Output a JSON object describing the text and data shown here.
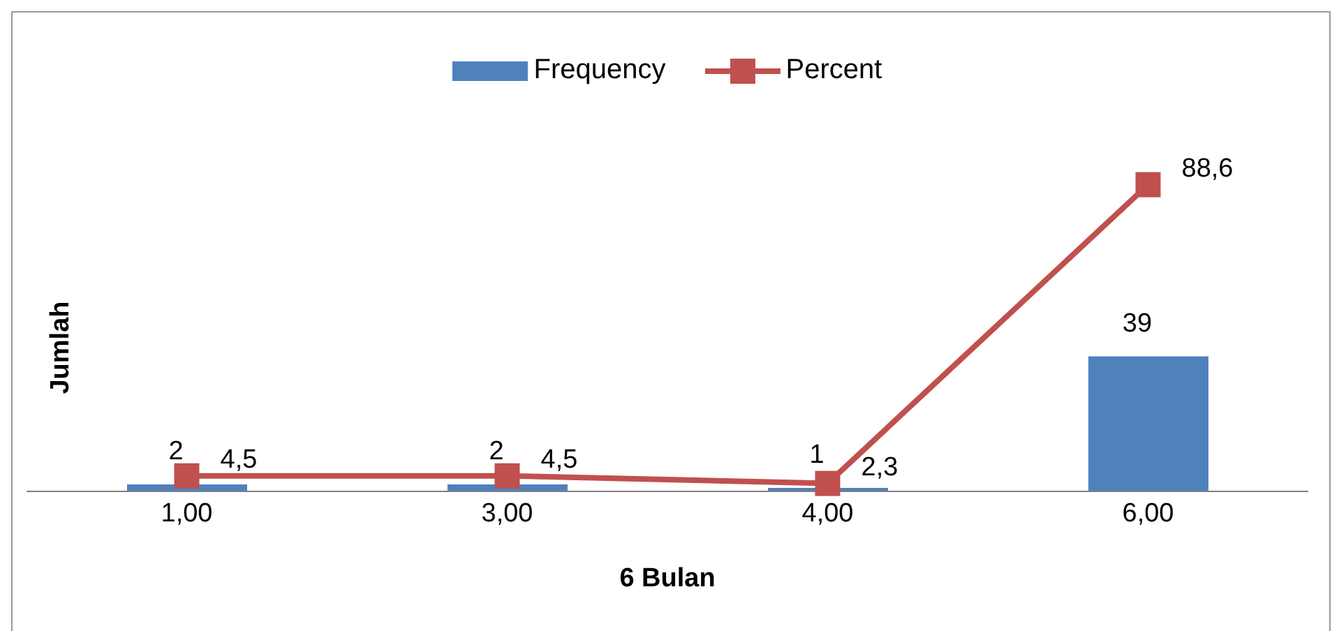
{
  "chart_data": {
    "type": "bar",
    "xlabel": "6 Bulan",
    "ylabel": "Jumlah",
    "categories": [
      "1,00",
      "3,00",
      "4,00",
      "6,00"
    ],
    "legend": "top",
    "marker": "square",
    "series": [
      {
        "name": "Frequency",
        "color": "#4f81bd",
        "values": [
          2,
          2,
          1,
          39
        ],
        "value_labels": [
          "2",
          "2",
          "1",
          "39"
        ]
      },
      {
        "name": "Percent",
        "type": "line",
        "color": "#c0504d",
        "values": [
          4.5,
          4.5,
          2.3,
          88.6
        ],
        "value_labels": [
          "4,5",
          "4,5",
          "2,3",
          "88,6"
        ]
      }
    ]
  }
}
